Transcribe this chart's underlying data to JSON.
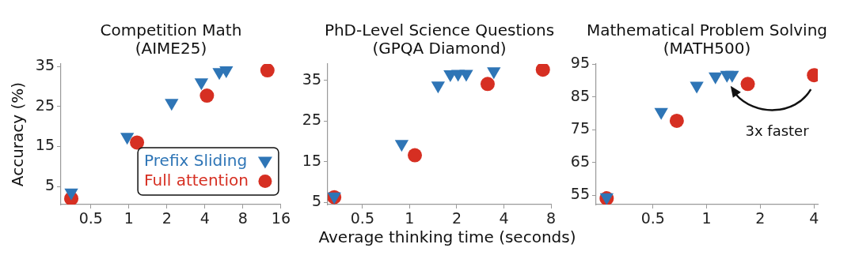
{
  "chart_data": [
    {
      "type": "scatter",
      "title": "Competition Math",
      "subtitle": "(AIME25)",
      "ylabel": "Accuracy (%)",
      "log": "x",
      "grid": false,
      "legend": "bottom right",
      "xlim": [
        0.29,
        16
      ],
      "xticks": [
        0.5,
        1,
        2,
        4,
        8,
        16
      ],
      "ylim": [
        0.5,
        35.6
      ],
      "yticks": [
        5,
        15,
        25,
        35
      ],
      "series": [
        {
          "name": "Prefix Sliding",
          "color": "#2e75b6",
          "marker": "triangle",
          "x": [
            0.35,
            0.97,
            2.18,
            3.75,
            5.2,
            5.9
          ],
          "values": [
            3.5,
            17.4,
            25.9,
            31.0,
            33.6,
            34.0
          ]
        },
        {
          "name": "Full attention",
          "color": "#d62f22",
          "marker": "circle",
          "x": [
            0.35,
            1.16,
            4.15,
            12.5
          ],
          "values": [
            2.0,
            16.0,
            27.7,
            34.0
          ]
        }
      ]
    },
    {
      "type": "scatter",
      "title": "PhD-Level Science Questions",
      "subtitle": "(GPQA Diamond)",
      "xlabel": "Average thinking time (seconds)",
      "log": "x",
      "grid": false,
      "xlim": [
        0.3,
        8
      ],
      "xticks": [
        0.5,
        1,
        2,
        4,
        8
      ],
      "ylim": [
        4.5,
        39
      ],
      "yticks": [
        5,
        15,
        25,
        35
      ],
      "series": [
        {
          "color": "#2e75b6",
          "marker": "triangle",
          "x": [
            0.33,
            0.89,
            1.52,
            1.82,
            2.04,
            2.3,
            3.45
          ],
          "values": [
            6.5,
            19.4,
            33.7,
            36.5,
            36.6,
            36.6,
            37.2
          ]
        },
        {
          "color": "#d62f22",
          "marker": "circle",
          "x": [
            0.33,
            1.08,
            3.15,
            7.1
          ],
          "values": [
            6.3,
            16.6,
            34.1,
            37.6
          ]
        }
      ]
    },
    {
      "type": "scatter",
      "title": "Mathematical Problem Solving",
      "subtitle": "(MATH500)",
      "log": "x",
      "grid": false,
      "xlim": [
        0.24,
        4.2
      ],
      "xticks": [
        0.5,
        1,
        2,
        4
      ],
      "ylim": [
        52.2,
        95
      ],
      "yticks": [
        55,
        65,
        75,
        85,
        95
      ],
      "annotations": [
        "3x faster"
      ],
      "series": [
        {
          "color": "#2e75b6",
          "marker": "triangle",
          "x": [
            0.275,
            0.556,
            0.88,
            1.12,
            1.3,
            1.39
          ],
          "values": [
            54.4,
            80.4,
            88.4,
            91.2,
            91.7,
            91.7
          ]
        },
        {
          "color": "#d62f22",
          "marker": "circle",
          "x": [
            0.275,
            0.68,
            1.7,
            4.0
          ],
          "values": [
            54.1,
            77.7,
            88.9,
            91.6
          ]
        }
      ]
    }
  ]
}
